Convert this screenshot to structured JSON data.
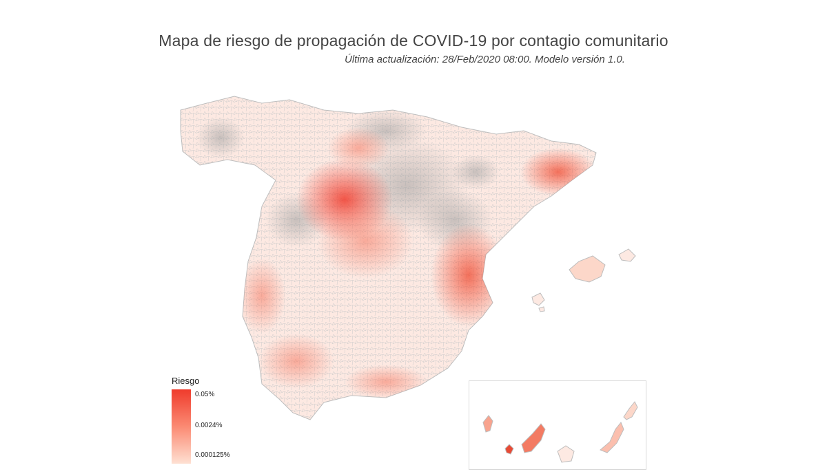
{
  "header": {
    "title": "Mapa de riesgo de propagación de COVID-19 por contagio comunitario",
    "subtitle": "Última actualización: 28/Feb/2020 08:00. Modelo versión 1.0."
  },
  "legend": {
    "title": "Riesgo",
    "labels": [
      "0.05%",
      "0.0024%",
      "0.000125%"
    ],
    "color_high": "#ef3b2c",
    "color_mid": "#fb8a73",
    "color_low": "#fee0d2"
  },
  "colors": {
    "no_data": "#9e9e9e",
    "border": "#bdbdbd",
    "background": "#ffffff"
  },
  "regions": {
    "mainland": "Península Ibérica",
    "balearic": "Islas Baleares",
    "canary": "Islas Canarias"
  }
}
